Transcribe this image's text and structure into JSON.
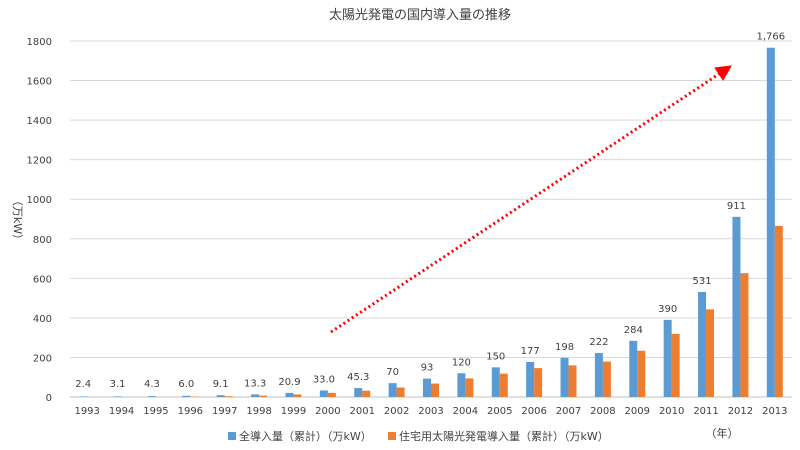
{
  "chart_data": {
    "type": "bar",
    "title": "太陽光発電の国内導入量の推移",
    "ylabel": "（万kW）",
    "xlabel": "（年）",
    "ylim": [
      0,
      1800
    ],
    "yticks": [
      0,
      200,
      400,
      600,
      800,
      1000,
      1200,
      1400,
      1600,
      1800
    ],
    "grid": true,
    "legend_position": "bottom",
    "categories": [
      "1993",
      "1994",
      "1995",
      "1996",
      "1997",
      "1998",
      "1999",
      "2000",
      "2001",
      "2002",
      "2003",
      "2004",
      "2005",
      "2006",
      "2007",
      "2008",
      "2009",
      "2010",
      "2011",
      "2012",
      "2013"
    ],
    "series": [
      {
        "name": "全導入量（累計）（万kW）",
        "color": "#5B9BD5",
        "values": [
          2.4,
          3.1,
          4.3,
          6.0,
          9.1,
          13.3,
          20.9,
          33.0,
          45.3,
          70,
          93,
          120,
          150,
          177,
          198,
          222,
          284,
          390,
          531,
          911,
          1766
        ],
        "data_labels": [
          "2.4",
          "3.1",
          "4.3",
          "6.0",
          "9.1",
          "13.3",
          "20.9",
          "33.0",
          "45.3",
          "70",
          "93",
          "120",
          "150",
          "177",
          "198",
          "222",
          "284",
          "390",
          "531",
          "911",
          "1,766"
        ]
      },
      {
        "name": "住宅用太陽光発電導入量（累計）（万kW）",
        "color": "#ED7D31",
        "values": [
          0,
          0,
          0,
          2,
          4,
          7,
          13,
          21,
          32,
          48,
          68,
          94,
          118,
          146,
          160,
          179,
          234,
          319,
          443,
          626,
          865
        ]
      }
    ],
    "annotation": {
      "type": "trend-arrow",
      "color": "#FF0000",
      "style": "dotted"
    }
  }
}
